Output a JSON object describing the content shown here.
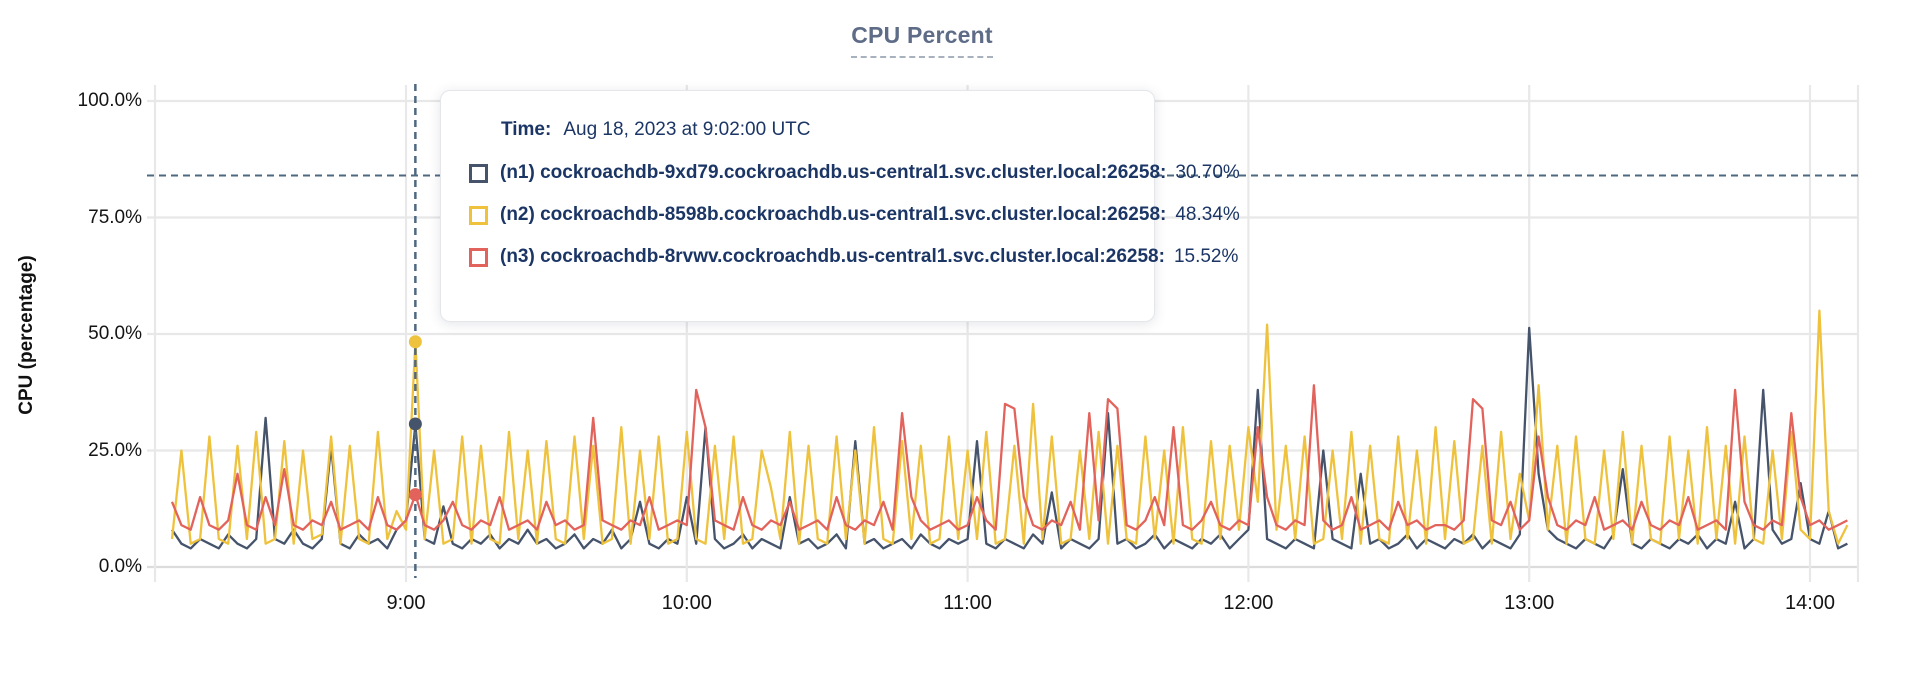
{
  "page": {
    "title": "CPU Percent"
  },
  "colors": {
    "title": "#5E6C87",
    "grid": "#E8E8E8",
    "grid_zero": "#DCDCDC",
    "crosshair": "#4E6880",
    "tooltip_text": "#1B3565"
  },
  "tooltip": {
    "time_label": "Time:",
    "time_value": "Aug 18, 2023 at 9:02:00 UTC",
    "rows": [
      {
        "label": "(n1) cockroachdb-9xd79.cockroachdb.us-central1.svc.cluster.local:26258:",
        "value": "30.70%"
      },
      {
        "label": "(n2) cockroachdb-8598b.cockroachdb.us-central1.svc.cluster.local:26258:",
        "value": "48.34%"
      },
      {
        "label": "(n3) cockroachdb-8rvwv.cockroachdb.us-central1.svc.cluster.local:26258:",
        "value": "15.52%"
      }
    ]
  },
  "chart_data": {
    "type": "line",
    "title": "CPU Percent",
    "xlabel": "",
    "ylabel": "CPU (percentage)",
    "ylim": [
      0,
      100
    ],
    "grid": true,
    "legend_position": "tooltip-overlay",
    "y_ticks": [
      {
        "label": "0.0%",
        "value": 0
      },
      {
        "label": "25.0%",
        "value": 25
      },
      {
        "label": "50.0%",
        "value": 50
      },
      {
        "label": "75.0%",
        "value": 75
      },
      {
        "label": "100.0%",
        "value": 100
      }
    ],
    "x_ticks": [
      {
        "label": "9:00",
        "minutes": 540
      },
      {
        "label": "10:00",
        "minutes": 600
      },
      {
        "label": "11:00",
        "minutes": 660
      },
      {
        "label": "12:00",
        "minutes": 720
      },
      {
        "label": "13:00",
        "minutes": 780
      },
      {
        "label": "14:00",
        "minutes": 840
      }
    ],
    "x_start_min": 490,
    "x_step_min": 2,
    "threshold_line_pct": 84,
    "crosshair": {
      "time": "9:02:00",
      "minutes": 542
    },
    "highlight_points": [
      {
        "series": 1,
        "minutes": 542,
        "value": 48.34
      },
      {
        "series": 0,
        "minutes": 542,
        "value": 30.7
      },
      {
        "series": 2,
        "minutes": 542,
        "value": 15.52
      }
    ],
    "series": [
      {
        "name": "(n1) cockroachdb-9xd79.cockroachdb.us-central1.svc.cluster.local:26258",
        "color": "#45536B",
        "values": [
          8,
          5,
          4,
          6,
          5,
          4,
          7,
          5,
          4,
          6,
          32,
          6,
          5,
          8,
          5,
          4,
          6,
          26,
          5,
          4,
          7,
          5,
          6,
          4,
          8,
          10,
          30.7,
          6,
          5,
          13,
          5,
          4,
          6,
          5,
          7,
          4,
          6,
          5,
          8,
          5,
          6,
          4,
          5,
          7,
          4,
          6,
          5,
          8,
          4,
          6,
          14,
          5,
          4,
          6,
          5,
          15,
          5,
          30,
          6,
          4,
          5,
          7,
          4,
          6,
          5,
          4,
          15,
          5,
          6,
          4,
          5,
          7,
          4,
          27,
          5,
          6,
          4,
          5,
          6,
          4,
          7,
          5,
          4,
          6,
          5,
          6,
          27,
          5,
          4,
          6,
          5,
          4,
          7,
          5,
          16,
          4,
          6,
          5,
          4,
          6,
          33,
          5,
          6,
          4,
          5,
          7,
          4,
          6,
          5,
          4,
          6,
          5,
          7,
          4,
          6,
          8,
          38,
          6,
          5,
          4,
          6,
          5,
          4,
          25,
          6,
          5,
          4,
          20,
          5,
          6,
          4,
          5,
          7,
          4,
          6,
          5,
          4,
          6,
          5,
          7,
          4,
          6,
          5,
          4,
          7,
          51.3,
          20,
          8,
          6,
          5,
          4,
          6,
          5,
          4,
          7,
          21,
          5,
          4,
          6,
          5,
          4,
          6,
          5,
          7,
          4,
          6,
          5,
          14,
          4,
          6,
          38,
          8,
          5,
          6,
          18,
          6,
          5,
          12,
          4,
          5
        ]
      },
      {
        "name": "(n2) cockroachdb-8598b.cockroachdb.us-central1.svc.cluster.local:26258",
        "color": "#EFC23E",
        "values": [
          6,
          25,
          5,
          6,
          28,
          6,
          5,
          26,
          6,
          29,
          5,
          6,
          27,
          5,
          25,
          6,
          7,
          28,
          5,
          26,
          6,
          5,
          29,
          6,
          12,
          8,
          48.34,
          6,
          25,
          5,
          6,
          28,
          5,
          26,
          6,
          5,
          29,
          6,
          25,
          5,
          27,
          6,
          5,
          28,
          6,
          26,
          5,
          6,
          30,
          5,
          25,
          6,
          28,
          5,
          6,
          29,
          6,
          5,
          26,
          6,
          28,
          5,
          6,
          25,
          17,
          6,
          29,
          5,
          26,
          6,
          5,
          28,
          6,
          25,
          5,
          30,
          6,
          5,
          27,
          6,
          26,
          5,
          6,
          28,
          6,
          25,
          6,
          29,
          5,
          6,
          26,
          5,
          35,
          6,
          28,
          5,
          6,
          25,
          6,
          29,
          5,
          26,
          6,
          5,
          28,
          6,
          25,
          5,
          30,
          6,
          5,
          27,
          6,
          26,
          8,
          30,
          14,
          52,
          8,
          26,
          6,
          28,
          5,
          6,
          25,
          6,
          29,
          5,
          26,
          6,
          5,
          28,
          6,
          25,
          5,
          30,
          6,
          27,
          5,
          6,
          26,
          5,
          29,
          6,
          20,
          10,
          39,
          8,
          26,
          5,
          28,
          6,
          5,
          25,
          6,
          29,
          5,
          26,
          6,
          5,
          28,
          6,
          25,
          5,
          30,
          6,
          26,
          5,
          28,
          6,
          5,
          25,
          6,
          29,
          8,
          6,
          55,
          12,
          5,
          9
        ]
      },
      {
        "name": "(n3) cockroachdb-8rvwv.cockroachdb.us-central1.svc.cluster.local:26258",
        "color": "#E2635C",
        "values": [
          14,
          9,
          8,
          15,
          9,
          8,
          10,
          20,
          9,
          8,
          15,
          9,
          21,
          9,
          8,
          10,
          9,
          14,
          8,
          9,
          10,
          8,
          15,
          9,
          8,
          10,
          15.52,
          9,
          8,
          10,
          14,
          9,
          8,
          10,
          9,
          15,
          8,
          9,
          10,
          8,
          14,
          9,
          10,
          8,
          9,
          32,
          10,
          9,
          8,
          10,
          9,
          15,
          8,
          9,
          10,
          9,
          38,
          30,
          10,
          9,
          8,
          15,
          9,
          8,
          10,
          9,
          14,
          8,
          9,
          10,
          8,
          15,
          9,
          8,
          10,
          9,
          14,
          8,
          33,
          15,
          10,
          8,
          9,
          10,
          8,
          9,
          15,
          10,
          8,
          35,
          34,
          15,
          9,
          8,
          10,
          9,
          14,
          8,
          33,
          10,
          36,
          34,
          9,
          8,
          10,
          15,
          9,
          30,
          9,
          8,
          10,
          14,
          9,
          8,
          10,
          9,
          30,
          15,
          9,
          8,
          10,
          9,
          39,
          10,
          8,
          9,
          15,
          8,
          9,
          10,
          8,
          14,
          9,
          10,
          8,
          9,
          9,
          8,
          10,
          36,
          34,
          10,
          9,
          14,
          8,
          10,
          28,
          15,
          9,
          8,
          10,
          9,
          15,
          8,
          9,
          10,
          8,
          14,
          9,
          8,
          10,
          9,
          15,
          8,
          9,
          10,
          8,
          38,
          14,
          9,
          8,
          10,
          9,
          33,
          15,
          9,
          10,
          8,
          9,
          10
        ]
      }
    ]
  }
}
